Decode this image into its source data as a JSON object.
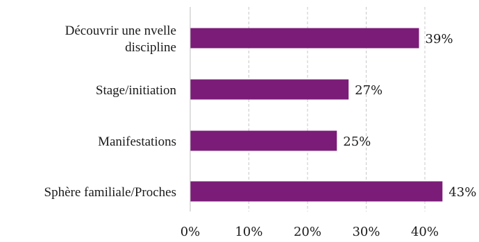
{
  "chart_data": {
    "type": "bar",
    "orientation": "horizontal",
    "categories": [
      [
        "Découvrir une nvelle",
        "discipline"
      ],
      [
        "Stage/initiation"
      ],
      [
        "Manifestations"
      ],
      [
        "Sphère familiale/Proches"
      ]
    ],
    "values": [
      39,
      27,
      25,
      43
    ],
    "value_labels": [
      "39%",
      "27%",
      "25%",
      "43%"
    ],
    "xlim": [
      0,
      40
    ],
    "x_ticks": [
      0,
      10,
      20,
      30,
      40
    ],
    "x_tick_labels": [
      "0%",
      "10%",
      "20%",
      "30%",
      "40%"
    ],
    "grid": "vertical dashed",
    "colors": {
      "bar": "#7b1c78",
      "grid": "#c8c8c8",
      "axis": "#bdbdbd"
    }
  }
}
